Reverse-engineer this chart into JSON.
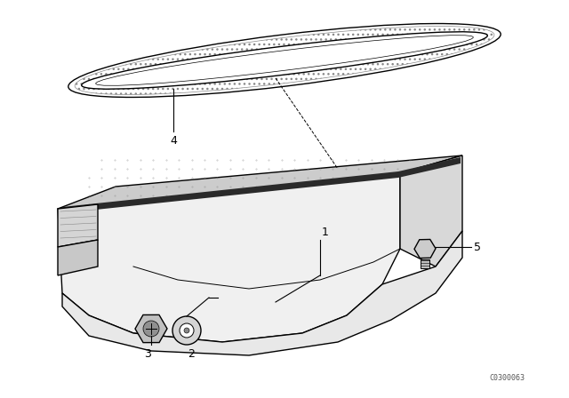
{
  "bg_color": "#ffffff",
  "black": "#000000",
  "dark_gray": "#444444",
  "mid_gray": "#888888",
  "light_gray": "#cccccc",
  "very_light_gray": "#ebebeb",
  "watermark": "C0300063",
  "figsize": [
    6.4,
    4.48
  ],
  "dpi": 100
}
